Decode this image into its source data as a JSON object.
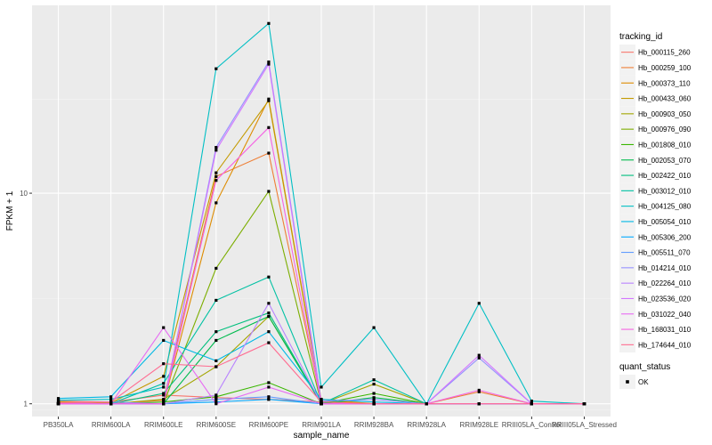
{
  "chart_data": {
    "type": "line",
    "xlabel": "sample_name",
    "ylabel": "FPKM + 1",
    "y_scale": "log",
    "ylim": [
      0.87,
      78
    ],
    "y_ticks": [
      1,
      10
    ],
    "y_tick_labels": [
      "1",
      "10"
    ],
    "grid": true,
    "legend_position": "right",
    "categories": [
      "PB350LA",
      "RRIM600LA",
      "RRIM600LE",
      "RRIM600SE",
      "RRIM600PE",
      "RRIM901LA",
      "RRIM928BA",
      "RRIM928LA",
      "RRIM928LE",
      "RRIII05LA_Control",
      "RRIII05LA_Stressed"
    ],
    "legend_title": "tracking_id",
    "shape_legend": {
      "title": "quant_status",
      "label": "OK"
    },
    "series": [
      {
        "name": "Hb_000115_260",
        "color": "#F8766D",
        "values": [
          1.03,
          1.02,
          1.1,
          1.07,
          1.05,
          1.02,
          1.0,
          1.0,
          1.0,
          1.0,
          1.0
        ]
      },
      {
        "name": "Hb_000259_100",
        "color": "#EE7E35",
        "values": [
          1.01,
          1.0,
          1.04,
          12.0,
          15.5,
          1.02,
          1.0,
          1.0,
          1.14,
          1.0,
          1.0
        ]
      },
      {
        "name": "Hb_000373_110",
        "color": "#DE8C00",
        "values": [
          1.0,
          1.0,
          1.0,
          9.0,
          28.0,
          1.05,
          1.0,
          1.0,
          1.0,
          1.0,
          1.0
        ]
      },
      {
        "name": "Hb_000433_060",
        "color": "#C49A00",
        "values": [
          1.02,
          1.01,
          1.35,
          12.5,
          27.5,
          1.03,
          1.0,
          1.0,
          1.0,
          1.0,
          1.0
        ]
      },
      {
        "name": "Hb_000903_050",
        "color": "#A3A500",
        "values": [
          1.0,
          1.0,
          1.05,
          1.5,
          2.6,
          1.0,
          1.24,
          1.0,
          1.0,
          1.0,
          1.0
        ]
      },
      {
        "name": "Hb_000976_090",
        "color": "#7CAE00",
        "values": [
          1.0,
          1.0,
          1.0,
          4.4,
          10.2,
          1.0,
          1.0,
          1.0,
          1.0,
          1.0,
          1.0
        ]
      },
      {
        "name": "Hb_001808_010",
        "color": "#39B600",
        "values": [
          1.0,
          1.0,
          1.02,
          1.08,
          1.26,
          1.0,
          1.12,
          1.0,
          1.0,
          1.0,
          1.0
        ]
      },
      {
        "name": "Hb_002053_070",
        "color": "#00BB4E",
        "values": [
          1.0,
          1.0,
          1.0,
          2.0,
          2.6,
          1.0,
          1.07,
          1.0,
          1.0,
          1.0,
          1.0
        ]
      },
      {
        "name": "Hb_002422_010",
        "color": "#00BF7D",
        "values": [
          1.0,
          1.0,
          1.12,
          2.2,
          2.7,
          1.0,
          1.0,
          1.0,
          1.0,
          1.0,
          1.0
        ]
      },
      {
        "name": "Hb_003012_010",
        "color": "#00C1A3",
        "values": [
          1.0,
          1.0,
          1.25,
          3.1,
          4.0,
          1.0,
          1.3,
          1.0,
          1.0,
          1.0,
          1.0
        ]
      },
      {
        "name": "Hb_004125_080",
        "color": "#00BFC4",
        "values": [
          1.04,
          1.05,
          1.2,
          39.0,
          64.0,
          1.2,
          2.3,
          1.0,
          3.0,
          1.03,
          1.0
        ]
      },
      {
        "name": "Hb_005054_010",
        "color": "#00B8E5",
        "values": [
          1.06,
          1.08,
          2.0,
          1.6,
          2.2,
          1.05,
          1.02,
          1.0,
          1.0,
          1.0,
          1.0
        ]
      },
      {
        "name": "Hb_005306_200",
        "color": "#00A9FF",
        "values": [
          1.0,
          1.0,
          1.0,
          1.02,
          1.05,
          1.0,
          1.0,
          1.0,
          1.0,
          1.0,
          1.0
        ]
      },
      {
        "name": "Hb_005511_070",
        "color": "#619CFF",
        "values": [
          1.0,
          1.0,
          1.0,
          1.05,
          1.08,
          1.0,
          1.0,
          1.0,
          1.0,
          1.0,
          1.0
        ]
      },
      {
        "name": "Hb_014214_010",
        "color": "#9590FF",
        "values": [
          1.01,
          1.02,
          1.0,
          16.5,
          42.0,
          1.03,
          1.05,
          1.0,
          1.65,
          1.0,
          1.0
        ]
      },
      {
        "name": "Hb_022264_010",
        "color": "#B983FF",
        "values": [
          1.0,
          1.0,
          1.0,
          1.1,
          3.0,
          1.0,
          1.0,
          1.0,
          1.0,
          1.0,
          1.0
        ]
      },
      {
        "name": "Hb_023536_020",
        "color": "#D376FF",
        "values": [
          1.0,
          1.0,
          1.0,
          16.0,
          41.0,
          1.0,
          1.0,
          1.0,
          1.7,
          1.0,
          1.0
        ]
      },
      {
        "name": "Hb_031022_040",
        "color": "#E76BF3",
        "values": [
          1.0,
          1.0,
          2.3,
          1.0,
          1.2,
          1.0,
          1.0,
          1.0,
          1.0,
          1.0,
          1.0
        ]
      },
      {
        "name": "Hb_168031_010",
        "color": "#F564E3",
        "values": [
          1.0,
          1.0,
          1.0,
          11.5,
          20.5,
          1.0,
          1.0,
          1.0,
          1.16,
          1.0,
          1.0
        ]
      },
      {
        "name": "Hb_174644_010",
        "color": "#FF6C91",
        "values": [
          1.01,
          1.02,
          1.55,
          1.5,
          1.95,
          1.02,
          1.0,
          1.0,
          1.0,
          1.0,
          1.0
        ]
      }
    ]
  }
}
